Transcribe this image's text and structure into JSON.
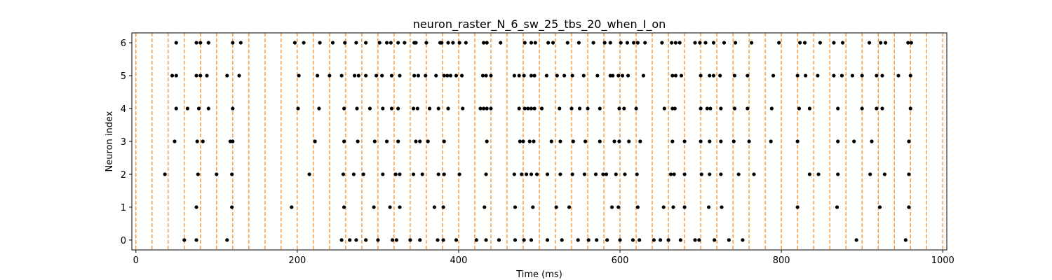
{
  "chart_data": {
    "type": "scatter",
    "title": "neuron_raster_N_6_sw_25_tbs_20_when_I_on",
    "xlabel": "Time (ms)",
    "ylabel": "Neuron index",
    "xlim": [
      -5,
      1005
    ],
    "ylim": [
      -0.3,
      6.3
    ],
    "xticks": [
      0,
      200,
      400,
      600,
      800,
      1000
    ],
    "yticks": [
      0,
      1,
      2,
      3,
      4,
      5,
      6
    ],
    "grid": false,
    "marker_color": "#000000",
    "vline_color": "#ff7f0e",
    "vlines_x": [
      0,
      20,
      40,
      60,
      80,
      100,
      120,
      140,
      160,
      180,
      200,
      220,
      240,
      260,
      280,
      300,
      320,
      340,
      360,
      380,
      400,
      420,
      440,
      460,
      480,
      500,
      520,
      540,
      560,
      580,
      600,
      620,
      640,
      660,
      680,
      700,
      720,
      740,
      760,
      780,
      800,
      820,
      840,
      860,
      880,
      900,
      920,
      940,
      960,
      980,
      1000
    ],
    "series": [
      {
        "y": 0,
        "x": [
          60,
          75,
          113,
          255,
          265,
          273,
          285,
          300,
          318,
          323,
          340,
          352,
          374,
          381,
          397,
          422,
          434,
          450,
          470,
          481,
          490,
          510,
          528,
          548,
          561,
          571,
          584,
          600,
          616,
          624,
          642,
          650,
          660,
          675,
          693,
          698,
          717,
          735,
          752,
          893,
          954
        ]
      },
      {
        "y": 1,
        "x": [
          75,
          119,
          193,
          258,
          295,
          315,
          327,
          370,
          381,
          432,
          470,
          492,
          521,
          537,
          590,
          598,
          622,
          654,
          666,
          680,
          710,
          726,
          820,
          869,
          922,
          958
        ]
      },
      {
        "y": 2,
        "x": [
          36,
          77,
          100,
          119,
          215,
          257,
          270,
          282,
          306,
          322,
          327,
          344,
          355,
          375,
          382,
          401,
          434,
          469,
          478,
          484,
          490,
          497,
          510,
          526,
          541,
          556,
          570,
          579,
          583,
          595,
          606,
          621,
          663,
          667,
          680,
          701,
          711,
          725,
          747,
          766,
          835,
          846,
          870,
          910,
          928,
          958
        ]
      },
      {
        "y": 3,
        "x": [
          48,
          76,
          83,
          117,
          120,
          222,
          258,
          275,
          296,
          311,
          325,
          347,
          352,
          362,
          382,
          435,
          476,
          480,
          488,
          493,
          515,
          526,
          542,
          557,
          575,
          593,
          599,
          611,
          625,
          665,
          680,
          700,
          711,
          725,
          741,
          760,
          787,
          820,
          870,
          890,
          912,
          958
        ]
      },
      {
        "y": 4,
        "x": [
          50,
          64,
          78,
          90,
          120,
          201,
          227,
          258,
          274,
          290,
          306,
          317,
          325,
          344,
          349,
          364,
          375,
          387,
          405,
          427,
          431,
          435,
          440,
          475,
          482,
          486,
          490,
          494,
          503,
          525,
          540,
          550,
          560,
          575,
          599,
          605,
          620,
          655,
          665,
          668,
          700,
          708,
          712,
          725,
          742,
          758,
          788,
          822,
          835,
          870,
          900,
          918,
          925,
          960
        ]
      },
      {
        "y": 5,
        "x": [
          45,
          50,
          75,
          80,
          88,
          113,
          128,
          202,
          225,
          240,
          255,
          271,
          276,
          285,
          298,
          305,
          317,
          327,
          345,
          350,
          359,
          372,
          382,
          386,
          390,
          397,
          404,
          430,
          434,
          440,
          469,
          475,
          481,
          490,
          494,
          509,
          522,
          531,
          541,
          555,
          572,
          588,
          591,
          598,
          603,
          610,
          629,
          665,
          669,
          676,
          700,
          711,
          716,
          724,
          742,
          758,
          790,
          820,
          830,
          845,
          865,
          875,
          888,
          900,
          918,
          925,
          945,
          960
        ]
      },
      {
        "y": 6,
        "x": [
          50,
          75,
          80,
          90,
          120,
          130,
          197,
          208,
          228,
          244,
          259,
          273,
          285,
          302,
          311,
          316,
          325,
          333,
          345,
          347,
          360,
          377,
          379,
          387,
          393,
          401,
          409,
          431,
          435,
          452,
          482,
          490,
          495,
          511,
          517,
          535,
          549,
          567,
          581,
          588,
          601,
          609,
          617,
          622,
          631,
          652,
          664,
          669,
          674,
          693,
          699,
          706,
          716,
          729,
          743,
          763,
          797,
          823,
          829,
          848,
          865,
          876,
          909,
          923,
          929,
          957,
          961
        ]
      }
    ]
  }
}
